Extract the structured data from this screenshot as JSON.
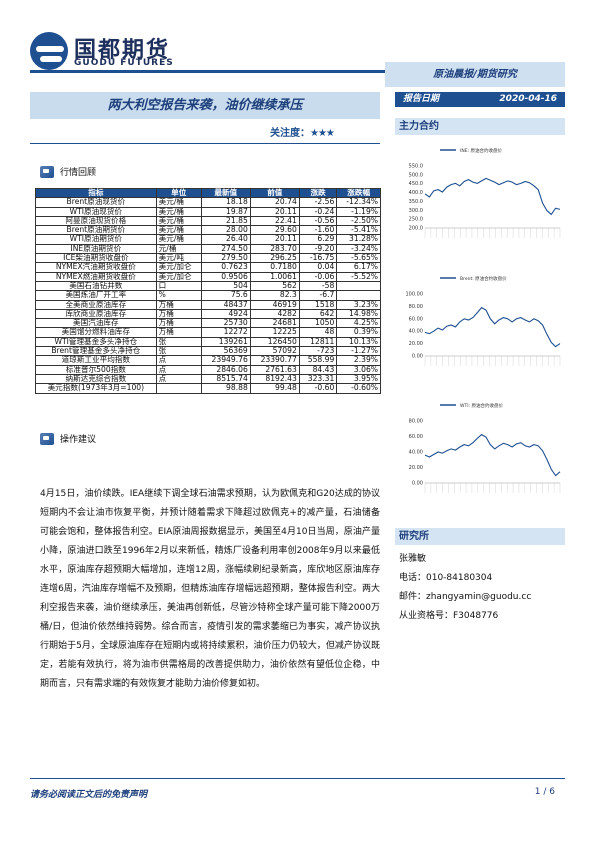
{
  "brand": {
    "cn": "国都期货",
    "en": "GUODU FUTURES"
  },
  "report_type": "原油晨报/期货研究",
  "title": "两大利空报告来袭，油价继续承压",
  "attention_label": "关注度：",
  "attention_stars": "★★★",
  "date_label": "报告日期",
  "date_value": "2020-04-16",
  "main_contract_heading": "主力合约",
  "section1_title": "行情回顾",
  "table": {
    "headers": [
      "指标",
      "单位",
      "最新值",
      "前值",
      "涨跌",
      "涨跌幅"
    ],
    "rows": [
      [
        "Brent原油现货价",
        "美元/桶",
        "18.18",
        "20.74",
        "-2.56",
        "-12.34%"
      ],
      [
        "WTI原油现货价",
        "美元/桶",
        "19.87",
        "20.11",
        "-0.24",
        "-1.19%"
      ],
      [
        "阿曼原油现货价格",
        "美元/桶",
        "21.85",
        "22.41",
        "-0.56",
        "-2.50%"
      ],
      [
        "Brent原油期货价",
        "美元/桶",
        "28.00",
        "29.60",
        "-1.60",
        "-5.41%"
      ],
      [
        "WTI原油期货价",
        "美元/桶",
        "26.40",
        "20.11",
        "6.29",
        "31.28%"
      ],
      [
        "INE原油期货价",
        "元/桶",
        "274.50",
        "283.70",
        "-9.20",
        "-3.24%"
      ],
      [
        "ICE柴油期货收盘价",
        "美元/吨",
        "279.50",
        "296.25",
        "-16.75",
        "-5.65%"
      ],
      [
        "NYMEX汽油期货收盘价",
        "美元/加仑",
        "0.7623",
        "0.7180",
        "0.04",
        "6.17%"
      ],
      [
        "NYMEX燃油期货收盘价",
        "美元/加仑",
        "0.9506",
        "1.0061",
        "-0.06",
        "-5.52%"
      ],
      [
        "美国石油钻井数",
        "口",
        "504",
        "562",
        "-58",
        ""
      ],
      [
        "美国炼油厂开工率",
        "%",
        "75.6",
        "82.3",
        "-6.7",
        ""
      ],
      [
        "全美商业原油库存",
        "万桶",
        "48437",
        "46919",
        "1518",
        "3.23%"
      ],
      [
        "库欣商业原油库存",
        "万桶",
        "4924",
        "4282",
        "642",
        "14.98%"
      ],
      [
        "美国汽油库存",
        "万桶",
        "25730",
        "24681",
        "1050",
        "4.25%"
      ],
      [
        "美国馏分燃料油库存",
        "万桶",
        "12272",
        "12225",
        "48",
        "0.39%"
      ],
      [
        "WTI管理基金多头净持仓",
        "张",
        "139261",
        "126450",
        "12811",
        "10.13%"
      ],
      [
        "Brent管理基金多头净持仓",
        "张",
        "56369",
        "57092",
        "-723",
        "-1.27%"
      ],
      [
        "道琼斯工业平均指数",
        "点",
        "23949.76",
        "23390.77",
        "558.99",
        "2.39%"
      ],
      [
        "标准普尔500指数",
        "点",
        "2846.06",
        "2761.63",
        "84.43",
        "3.06%"
      ],
      [
        "纳斯达克综合指数",
        "点",
        "8515.74",
        "8192.43",
        "323.31",
        "3.95%"
      ],
      [
        "美元指数(1973年3月=100)",
        "",
        "98.88",
        "99.48",
        "-0.60",
        "-0.60%"
      ]
    ]
  },
  "section2_title": "操作建议",
  "paragraph": "4月15日，油价续跌。IEA继续下调全球石油需求预期，认为欧佩克和G20达成的协议短期内不会让油市恢复平衡，并预计随着需求下降超过欧佩克+的减产量，石油储备可能会饱和，整体报告利空。EIA原油周报数据显示，美国至4月10日当周，原油产量小降，原油进口跌至1996年2月以来新低，精炼厂设备利用率创2008年9月以来最低水平，原油库存超预期大幅增加，连增12周，涨幅续刷纪录新高，库欣地区原油库存连增6周，汽油库存增幅不及预期，但精炼油库存增幅远超预期，整体报告利空。两大利空报告来袭，油价继续承压，美油再创新低，尽管沙特称全球产量可能下降2000万桶/日，但油价依然维持弱势。综合而言，疫情引发的需求萎缩已为事实，减产协议执行期始于5月，全球原油库存在短期内或将持续累积，油价压力仍较大，但减产协议既定，若能有效执行，将为油市供需格局的改善提供助力，油价依然有望低位企稳，中期而言，只有需求端的有效恢复才能助力油价修复如初。",
  "charts": [
    {
      "legend": "INE: 原油合约收盘价",
      "yticks": [
        "550.0",
        "500.0",
        "450.0",
        "400.0",
        "350.0",
        "300.0",
        "250.0",
        "200.0"
      ]
    },
    {
      "legend": "Brent: 原油合约收盘价",
      "yticks": [
        "100.00",
        "80.00",
        "60.00",
        "40.00",
        "20.00",
        "0.00"
      ]
    },
    {
      "legend": "WTI: 原油合约收盘价",
      "yticks": [
        "80.00",
        "60.00",
        "40.00",
        "20.00",
        "0.00"
      ]
    }
  ],
  "researcher": {
    "heading": "研究所",
    "name": "张雅敏",
    "phone": "电话：010-84180304",
    "email": "邮件：zhangyamin@guodu.cc",
    "license": "从业资格号：F3048776"
  },
  "footer": {
    "disclaimer": "请务必阅读正文后的免责声明",
    "page": "1 / 6"
  }
}
